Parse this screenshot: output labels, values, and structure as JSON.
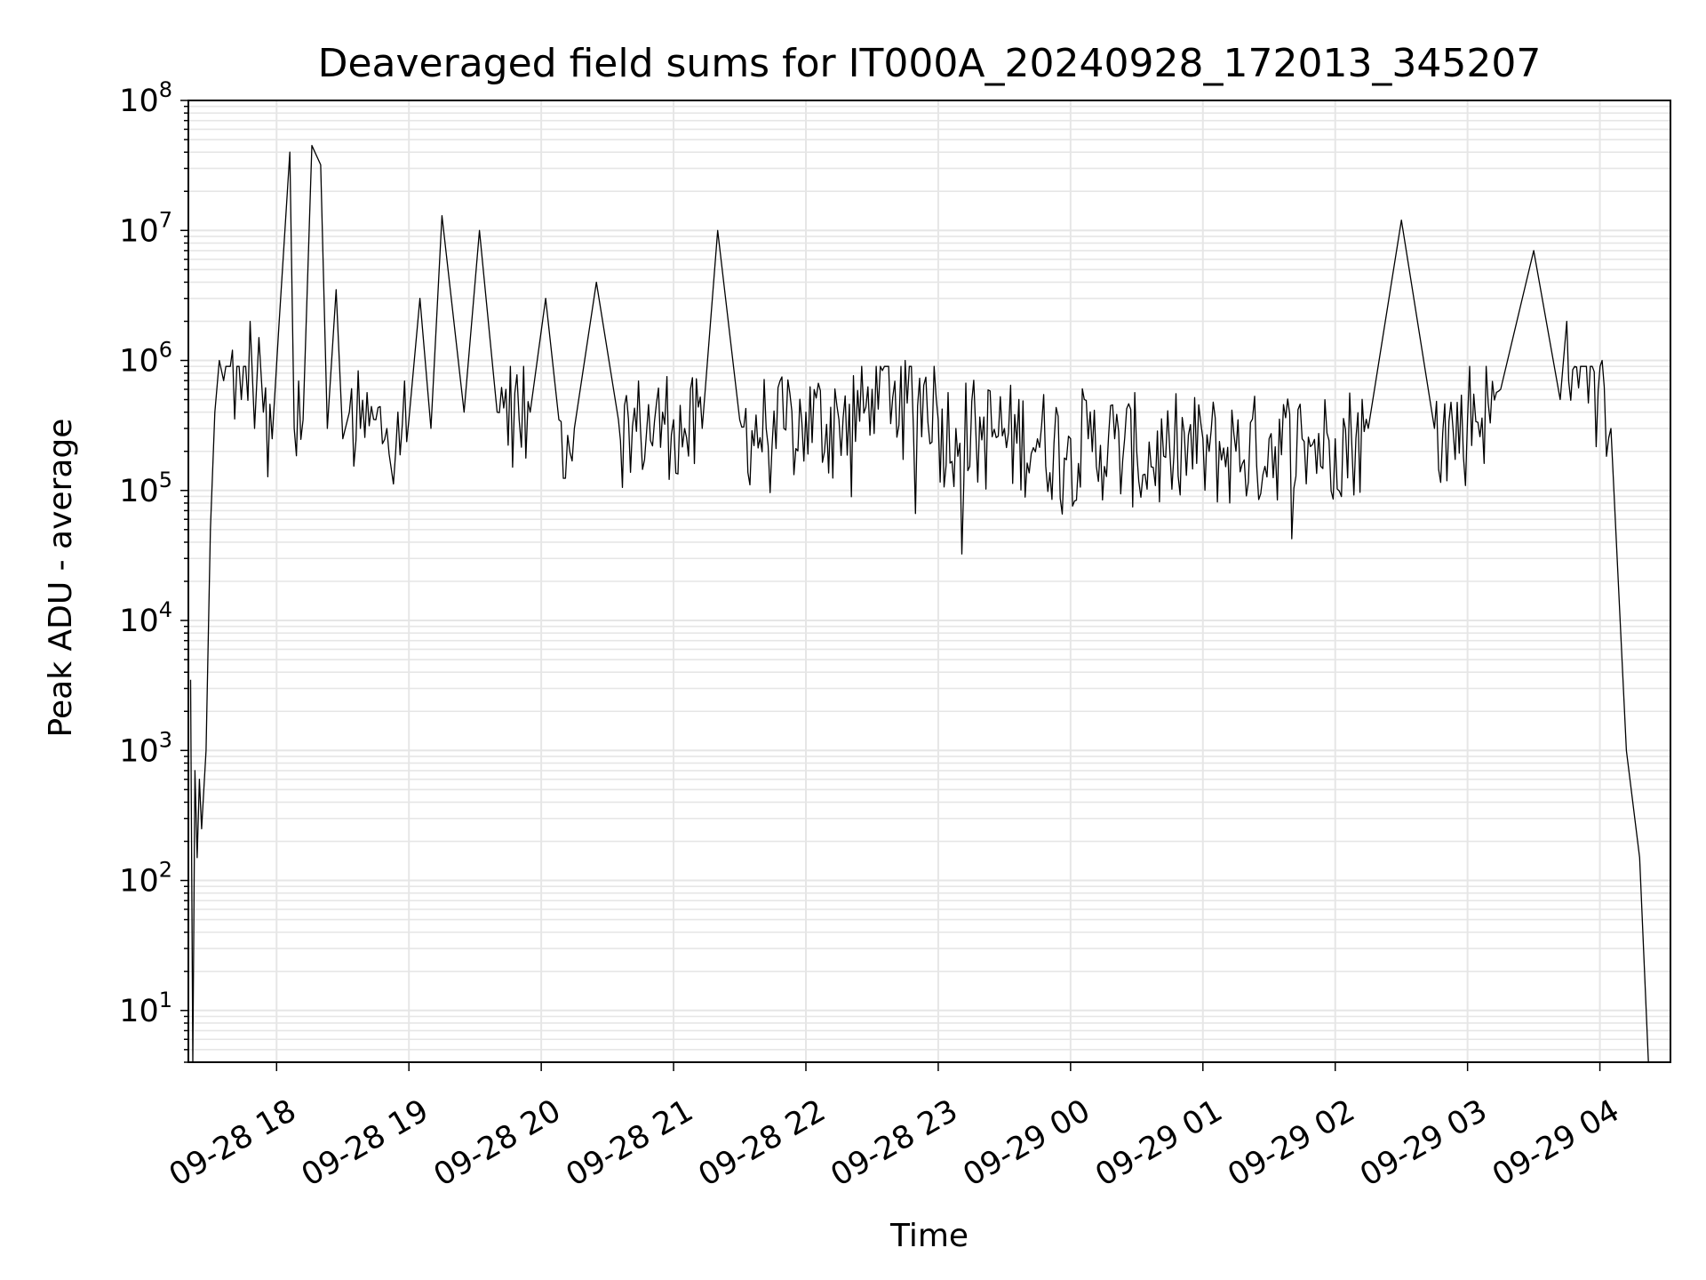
{
  "chart_data": {
    "type": "line",
    "title": "Deaveraged field sums for IT000A_20240928_172013_345207",
    "xlabel": "Time",
    "ylabel": "Peak ADU - average",
    "yscale": "log",
    "ylim": [
      4,
      100000000
    ],
    "xlim": [
      "2024-09-28 17:20",
      "2024-09-29 04:32"
    ],
    "grid": true,
    "line_color": "#000000",
    "grid_color": "#e6e6e6",
    "x_tick_labels": [
      "09-28 18",
      "09-28 19",
      "09-28 20",
      "09-28 21",
      "09-28 22",
      "09-28 23",
      "09-29 00",
      "09-29 01",
      "09-29 02",
      "09-29 03",
      "09-29 04"
    ],
    "y_ticks": [
      {
        "base": "10",
        "exp": "1"
      },
      {
        "base": "10",
        "exp": "2"
      },
      {
        "base": "10",
        "exp": "3"
      },
      {
        "base": "10",
        "exp": "4"
      },
      {
        "base": "10",
        "exp": "5"
      },
      {
        "base": "10",
        "exp": "6"
      },
      {
        "base": "10",
        "exp": "7"
      },
      {
        "base": "10",
        "exp": "8"
      }
    ],
    "series": [
      {
        "x": [
          "2024-09-28 17:21",
          "2024-09-28 17:22",
          "2024-09-28 17:23",
          "2024-09-28 17:24",
          "2024-09-28 17:25",
          "2024-09-28 17:26",
          "2024-09-28 17:28",
          "2024-09-28 17:30",
          "2024-09-28 17:32",
          "2024-09-28 17:34",
          "2024-09-28 17:36",
          "2024-09-28 17:40",
          "2024-09-28 17:44",
          "2024-09-28 17:48",
          "2024-09-28 17:50",
          "2024-09-28 17:52",
          "2024-09-28 17:54",
          "2024-09-28 17:58",
          "2024-09-28 18:01",
          "2024-09-28 18:06",
          "2024-09-28 18:08",
          "2024-09-28 18:12",
          "2024-09-28 18:16",
          "2024-09-28 18:20",
          "2024-09-28 18:23",
          "2024-09-28 18:27",
          "2024-09-28 18:30",
          "2024-09-28 18:33",
          "2024-09-28 18:38",
          "2024-09-28 18:45",
          "2024-09-28 18:50",
          "2024-09-28 18:55",
          "2024-09-28 19:00",
          "2024-09-28 19:05",
          "2024-09-28 19:10",
          "2024-09-28 19:15",
          "2024-09-28 19:25",
          "2024-09-28 19:32",
          "2024-09-28 19:40",
          "2024-09-28 19:44",
          "2024-09-28 19:50",
          "2024-09-28 19:55",
          "2024-09-28 20:02",
          "2024-09-28 20:08",
          "2024-09-28 20:15",
          "2024-09-28 20:25",
          "2024-09-28 20:35",
          "2024-09-28 20:45",
          "2024-09-28 20:55",
          "2024-09-28 21:00",
          "2024-09-28 21:05",
          "2024-09-28 21:13",
          "2024-09-28 21:20",
          "2024-09-28 21:30",
          "2024-09-28 21:42",
          "2024-09-28 21:50",
          "2024-09-28 22:00",
          "2024-09-28 22:15",
          "2024-09-28 22:30",
          "2024-09-28 22:45",
          "2024-09-28 23:00",
          "2024-09-28 23:08",
          "2024-09-28 23:17",
          "2024-09-28 23:30",
          "2024-09-28 23:45",
          "2024-09-29 00:00",
          "2024-09-29 00:08",
          "2024-09-29 00:20",
          "2024-09-29 00:30",
          "2024-09-29 00:45",
          "2024-09-29 01:00",
          "2024-09-29 01:15",
          "2024-09-29 01:30",
          "2024-09-29 01:45",
          "2024-09-29 02:00",
          "2024-09-29 02:15",
          "2024-09-29 02:30",
          "2024-09-29 02:45",
          "2024-09-29 03:00",
          "2024-09-29 03:15",
          "2024-09-29 03:30",
          "2024-09-29 03:42",
          "2024-09-29 03:45",
          "2024-09-29 04:01",
          "2024-09-29 04:05",
          "2024-09-29 04:12",
          "2024-09-29 04:18",
          "2024-09-29 04:22",
          "2024-09-29 04:24",
          "2024-09-29 04:25",
          "2024-09-29 04:26"
        ],
        "y": [
          3500,
          4,
          700,
          150,
          600,
          250,
          1000,
          50000,
          400000,
          1000000,
          700000,
          1200000,
          500000,
          2000000,
          300000,
          1500000,
          400000,
          250000,
          1800000,
          40000000,
          300000,
          350000,
          45000000,
          32000000,
          300000,
          3500000,
          250000,
          400000,
          300000,
          350000,
          300000,
          400000,
          350000,
          3000000,
          300000,
          13000000,
          400000,
          10000000,
          400000,
          600000,
          350000,
          400000,
          3000000,
          350000,
          300000,
          4000000,
          350000,
          300000,
          400000,
          350000,
          300000,
          300000,
          10000000,
          350000,
          300000,
          300000,
          400000,
          350000,
          600000,
          1000000,
          350000,
          300000,
          300000,
          300000,
          250000,
          250000,
          250000,
          250000,
          200000,
          200000,
          250000,
          200000,
          250000,
          250000,
          250000,
          300000,
          12000000,
          300000,
          350000,
          600000,
          7000000,
          500000,
          2000000,
          1000000,
          300000,
          1000,
          150,
          4,
          4,
          4,
          4
        ],
        "noise_floor": 30000,
        "noise_ceiling": 900000
      }
    ]
  }
}
